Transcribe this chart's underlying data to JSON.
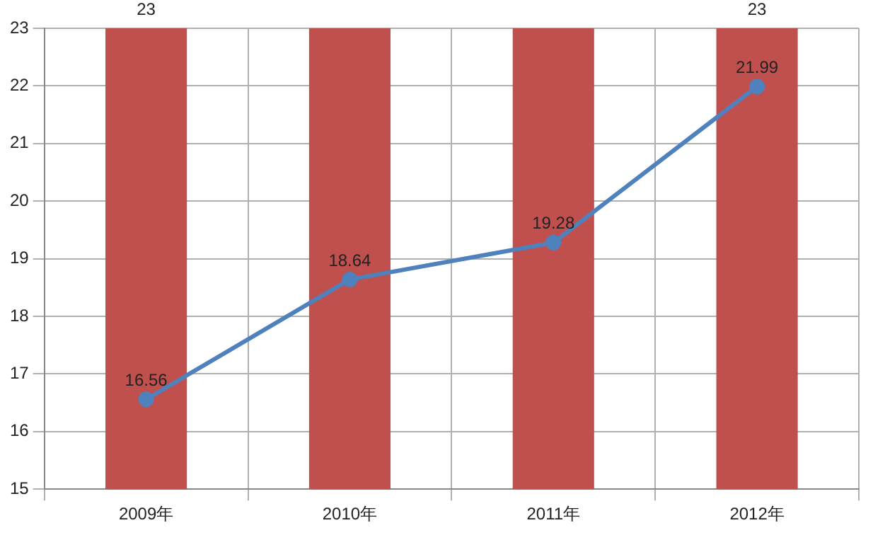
{
  "chart_data": {
    "type": "bar",
    "categories": [
      "2009年",
      "2010年",
      "2011年",
      "2012年"
    ],
    "series": [
      {
        "color": "#c0504d",
        "values": [
          23,
          23,
          23,
          23
        ],
        "value_labels": [
          "23",
          null,
          null,
          "23"
        ]
      },
      {
        "type": "line",
        "color": "#4f81bd",
        "values": [
          16.56,
          18.64,
          19.28,
          21.99
        ],
        "value_labels": [
          "16.56",
          "18.64",
          "19.28",
          "21.99"
        ]
      }
    ],
    "ylim": [
      15,
      23
    ],
    "yticks": [
      15,
      16,
      17,
      18,
      19,
      20,
      21,
      22,
      23
    ],
    "grid": true,
    "marker": "circle",
    "line_style": "solid",
    "legend": false
  }
}
